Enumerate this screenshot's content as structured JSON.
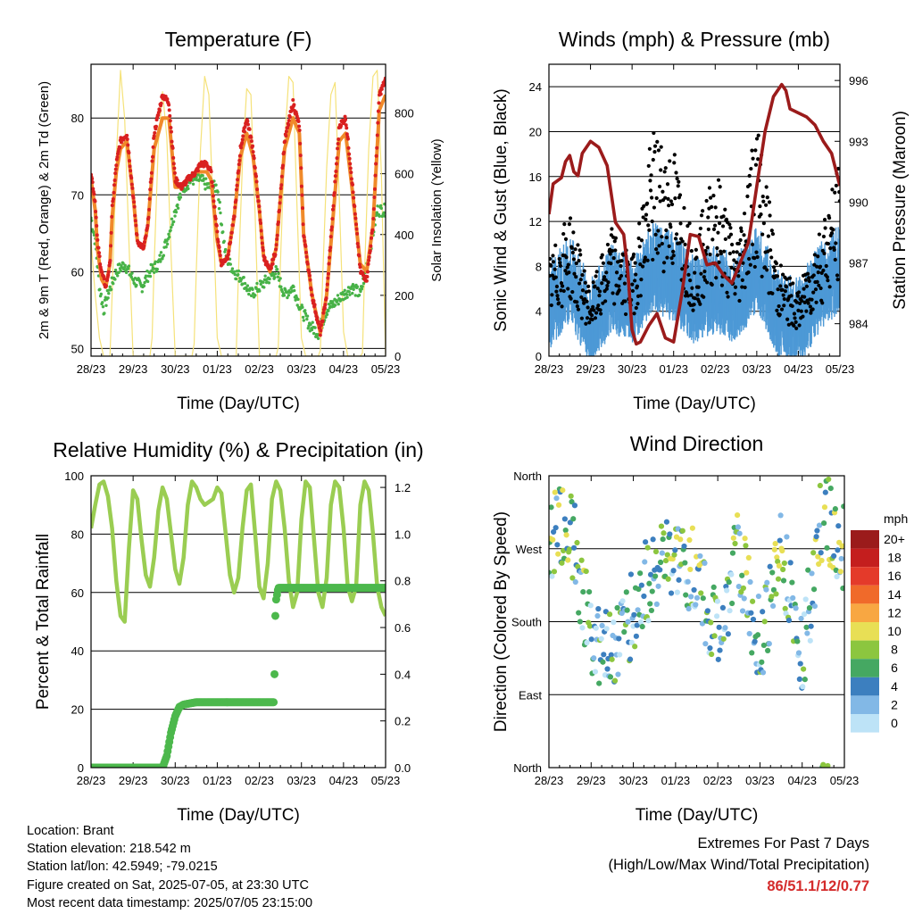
{
  "footer": {
    "location": "Location: Brant",
    "elevation": "Station elevation: 218.542 m",
    "latlon": "Station lat/lon: 42.5949; -79.0215",
    "created": "Figure created on Sat, 2025-07-05, at 23:30 UTC",
    "latest": "Most recent data timestamp: 2025/07/05 23:15:00"
  },
  "extremes": {
    "title": "Extremes For Past 7 Days",
    "subtitle": "(High/Low/Max Wind/Total Precipitation)",
    "values": "86/51.1/12/0.77"
  },
  "colors": {
    "temp_2m": "#d92020",
    "temp_9m": "#f08a2a",
    "dewpoint": "#47b247",
    "solar": "#f5e27a",
    "wind": "#4d99d6",
    "gust": "#000000",
    "pressure": "#9b1b1b",
    "rh": "#9acd52",
    "precip": "#4cb84c"
  },
  "chart_data": [
    {
      "id": "temperature",
      "type": "line",
      "title": "Temperature (F)",
      "xlabel": "Time (Day/UTC)",
      "ylabel": "2m & 9m T (Red, Orange) & 2m Td (Green)",
      "y2label": "Solar Insolation (Yellow)",
      "xticks": [
        "28/23",
        "29/23",
        "30/23",
        "01/23",
        "02/23",
        "03/23",
        "04/23",
        "05/23"
      ],
      "xlim": [
        0,
        7
      ],
      "ylim": [
        49,
        87
      ],
      "yticks": [
        50,
        60,
        70,
        80
      ],
      "y2lim": [
        0,
        960
      ],
      "y2ticks": [
        0,
        200,
        400,
        600,
        800
      ],
      "series": [
        {
          "x": [
            0,
            0.1,
            0.15,
            0.25,
            0.35,
            0.45,
            0.5,
            0.6,
            0.7,
            0.85,
            1.0,
            1.1,
            1.25,
            1.35,
            1.5,
            1.7,
            1.85,
            2.0,
            2.15,
            2.3,
            2.5,
            2.6,
            2.75,
            2.85,
            3.0,
            3.1,
            3.25,
            3.4,
            3.55,
            3.7,
            3.85,
            4.0,
            4.1,
            4.25,
            4.4,
            4.6,
            4.8,
            4.95,
            5.05,
            5.25,
            5.45,
            5.6,
            5.75,
            5.9,
            6.05,
            6.2,
            6.4,
            6.55,
            6.7,
            6.85,
            7.0
          ],
          "y": [
            73,
            69,
            64,
            60,
            58,
            61,
            68,
            74,
            77,
            78,
            70,
            64,
            63,
            66,
            78,
            83,
            82,
            72,
            71,
            72,
            73,
            74,
            74,
            73,
            65,
            61,
            62,
            67,
            76,
            80,
            76,
            68,
            62,
            60,
            63,
            77,
            82,
            79,
            65,
            57,
            52,
            57,
            68,
            79,
            80,
            72,
            60,
            59,
            66,
            83,
            85
          ]
        },
        {
          "x": [
            0,
            0.1,
            0.15,
            0.25,
            0.35,
            0.45,
            0.5,
            0.6,
            0.7,
            0.85,
            1.0,
            1.1,
            1.25,
            1.35,
            1.5,
            1.7,
            1.85,
            2.0,
            2.15,
            2.3,
            2.5,
            2.6,
            2.75,
            2.85,
            3.0,
            3.1,
            3.25,
            3.4,
            3.55,
            3.7,
            3.85,
            4.0,
            4.1,
            4.25,
            4.4,
            4.6,
            4.8,
            4.95,
            5.05,
            5.25,
            5.45,
            5.6,
            5.75,
            5.9,
            6.05,
            6.2,
            6.4,
            6.55,
            6.7,
            6.85,
            7.0
          ],
          "y": [
            72,
            68,
            63,
            59,
            58,
            61,
            67,
            73,
            76,
            77,
            70,
            64,
            63,
            66,
            76,
            80,
            80,
            71,
            71,
            72,
            73,
            73,
            73,
            72,
            64,
            61,
            62,
            67,
            75,
            78,
            75,
            68,
            62,
            60,
            63,
            76,
            80,
            78,
            65,
            57,
            52,
            57,
            67,
            77,
            78,
            71,
            61,
            60,
            66,
            81,
            83
          ]
        },
        {
          "x": [
            0,
            0.1,
            0.2,
            0.3,
            0.4,
            0.6,
            0.8,
            1.0,
            1.2,
            1.4,
            1.6,
            1.8,
            2.0,
            2.2,
            2.4,
            2.6,
            2.8,
            3.0,
            3.2,
            3.4,
            3.6,
            3.8,
            4.0,
            4.2,
            4.4,
            4.6,
            4.8,
            5.0,
            5.2,
            5.4,
            5.6,
            5.8,
            6.0,
            6.2,
            6.4,
            6.6,
            6.8,
            7.0
          ],
          "y": [
            67,
            64,
            58,
            55,
            57,
            60,
            61,
            59,
            58,
            60,
            61,
            64,
            68,
            71,
            72,
            72,
            71,
            71,
            62,
            60,
            59,
            57,
            58,
            59,
            60,
            57,
            58,
            55,
            53,
            52,
            55,
            56,
            57,
            58,
            57,
            62,
            68,
            68
          ]
        },
        {
          "x": [
            0,
            0.1,
            0.2,
            0.3,
            0.4,
            0.45,
            0.5,
            0.6,
            0.7,
            0.8,
            0.9,
            1.0,
            1.1,
            1.2,
            1.3,
            1.4,
            1.45,
            1.5,
            1.6,
            1.7,
            1.8,
            1.9,
            2.0,
            2.1,
            2.2,
            2.3,
            2.4,
            2.45,
            2.5,
            2.6,
            2.7,
            2.8,
            2.9,
            3.0,
            3.1,
            3.2,
            3.3,
            3.4,
            3.45,
            3.5,
            3.6,
            3.7,
            3.8,
            3.9,
            4.0,
            4.1,
            4.2,
            4.3,
            4.4,
            4.45,
            4.5,
            4.6,
            4.7,
            4.8,
            4.9,
            5.0,
            5.1,
            5.2,
            5.3,
            5.4,
            5.45,
            5.5,
            5.6,
            5.7,
            5.8,
            5.9,
            6.0,
            6.1,
            6.2,
            6.3,
            6.4,
            6.45,
            6.5,
            6.6,
            6.7,
            6.8,
            6.9,
            7.0
          ],
          "y": [
            380,
            200,
            60,
            0,
            0,
            0,
            200,
            650,
            940,
            780,
            380,
            0,
            0,
            0,
            0,
            0,
            60,
            300,
            700,
            870,
            720,
            340,
            0,
            0,
            0,
            0,
            0,
            40,
            280,
            680,
            920,
            860,
            480,
            60,
            0,
            0,
            0,
            0,
            0,
            260,
            640,
            880,
            860,
            460,
            0,
            0,
            0,
            0,
            0,
            30,
            300,
            700,
            920,
            900,
            470,
            60,
            0,
            0,
            0,
            0,
            20,
            240,
            620,
            860,
            900,
            520,
            80,
            0,
            0,
            0,
            0,
            10,
            270,
            680,
            920,
            940,
            600,
            0
          ]
        }
      ]
    },
    {
      "id": "winds",
      "type": "scatter",
      "title": "Winds (mph) & Pressure (mb)",
      "xlabel": "Time (Day/UTC)",
      "ylabel": "Sonic Wind & Gust (Blue, Black)",
      "y2label": "Station Pressure (Maroon)",
      "xticks": [
        "28/23",
        "29/23",
        "30/23",
        "01/23",
        "02/23",
        "03/23",
        "04/23",
        "05/23"
      ],
      "xlim": [
        0,
        7
      ],
      "ylim": [
        0,
        26
      ],
      "yticks": [
        0,
        4,
        8,
        12,
        16,
        20,
        24
      ],
      "y2lim": [
        982.4,
        996.8
      ],
      "y2ticks": [
        984,
        987,
        990,
        993,
        996
      ],
      "series": [
        {
          "name": "pressure",
          "x": [
            0,
            0.1,
            0.3,
            0.4,
            0.5,
            0.6,
            0.7,
            0.8,
            1.0,
            1.2,
            1.4,
            1.6,
            1.8,
            1.9,
            2.0,
            2.1,
            2.2,
            2.4,
            2.6,
            2.8,
            3.0,
            3.2,
            3.4,
            3.6,
            3.8,
            4.0,
            4.2,
            4.4,
            4.6,
            4.8,
            5.0,
            5.2,
            5.4,
            5.6,
            5.7,
            5.8,
            6.0,
            6.2,
            6.4,
            6.6,
            6.8,
            7.0
          ],
          "y": [
            989.4,
            990.9,
            991.2,
            992.0,
            992.3,
            991.5,
            991.3,
            992.4,
            993.0,
            992.7,
            991.8,
            989.0,
            988.4,
            986.5,
            983.7,
            983.0,
            983.1,
            983.9,
            984.5,
            983.3,
            983.1,
            985.5,
            988.4,
            988.3,
            986.9,
            987.0,
            986.4,
            986.0,
            987.0,
            988.0,
            990.8,
            993.5,
            995.2,
            995.8,
            995.5,
            994.6,
            994.4,
            994.2,
            993.8,
            993.0,
            992.4,
            990.8
          ]
        },
        {
          "name": "wind_mean",
          "x": [
            0,
            0.5,
            1,
            1.5,
            2,
            2.5,
            3,
            3.5,
            4,
            4.5,
            5,
            5.5,
            6,
            6.5,
            7
          ],
          "y": [
            3.5,
            6,
            2,
            5,
            4,
            7,
            6,
            4,
            5,
            4,
            7,
            3,
            2,
            5,
            7
          ]
        },
        {
          "name": "gust_mean",
          "x": [
            0,
            0.5,
            1,
            1.5,
            2,
            2.5,
            3,
            3.5,
            4,
            4.5,
            5,
            5.5,
            6,
            6.5,
            7
          ],
          "y": [
            6,
            9,
            4,
            8,
            6,
            14,
            13,
            7,
            12,
            7,
            15,
            6,
            4,
            8,
            12
          ]
        }
      ]
    },
    {
      "id": "humidity",
      "type": "line",
      "title": "Relative Humidity (%) & Precipitation (in)",
      "xlabel": "Time (Day/UTC)",
      "ylabel": "Percent & Total Rainfall",
      "xticks": [
        "28/23",
        "29/23",
        "30/23",
        "01/23",
        "02/23",
        "03/23",
        "04/23",
        "05/23"
      ],
      "xlim": [
        0,
        7
      ],
      "ylim": [
        0,
        100
      ],
      "yticks": [
        0,
        20,
        40,
        60,
        80,
        100
      ],
      "y2lim": [
        0,
        1.25
      ],
      "y2ticks": [
        0.0,
        0.2,
        0.4,
        0.6,
        0.8,
        1.0,
        1.2
      ],
      "series": [
        {
          "name": "rh",
          "x": [
            0,
            0.1,
            0.2,
            0.3,
            0.4,
            0.5,
            0.6,
            0.7,
            0.8,
            0.9,
            1.0,
            1.1,
            1.2,
            1.3,
            1.4,
            1.5,
            1.6,
            1.7,
            1.8,
            1.9,
            2.0,
            2.1,
            2.2,
            2.3,
            2.4,
            2.5,
            2.6,
            2.7,
            2.8,
            2.9,
            3.0,
            3.1,
            3.2,
            3.3,
            3.4,
            3.5,
            3.6,
            3.7,
            3.8,
            3.9,
            4.0,
            4.1,
            4.2,
            4.3,
            4.4,
            4.5,
            4.6,
            4.7,
            4.8,
            4.9,
            5.0,
            5.1,
            5.2,
            5.3,
            5.4,
            5.5,
            5.6,
            5.7,
            5.8,
            5.9,
            6.0,
            6.1,
            6.2,
            6.3,
            6.4,
            6.5,
            6.6,
            6.7,
            6.8,
            6.9,
            7.0
          ],
          "y": [
            82,
            90,
            97,
            98,
            93,
            82,
            64,
            52,
            50,
            75,
            95,
            92,
            78,
            66,
            62,
            72,
            88,
            96,
            92,
            80,
            68,
            63,
            72,
            90,
            98,
            96,
            92,
            90,
            91,
            92,
            96,
            94,
            80,
            66,
            60,
            65,
            82,
            95,
            97,
            80,
            62,
            58,
            70,
            92,
            98,
            95,
            82,
            64,
            55,
            60,
            85,
            98,
            96,
            78,
            60,
            55,
            65,
            90,
            98,
            96,
            82,
            62,
            57,
            62,
            90,
            98,
            95,
            80,
            62,
            55,
            52
          ]
        },
        {
          "name": "precip_total",
          "x": [
            0,
            1.5,
            1.7,
            1.8,
            1.9,
            2.0,
            2.1,
            2.2,
            2.5,
            3.0,
            3.5,
            4.0,
            4.35,
            4.36,
            4.37,
            4.38,
            4.4,
            4.45,
            4.5,
            5.0,
            5.5,
            6.0,
            6.5,
            7.0
          ],
          "y": [
            0,
            0,
            0,
            0.05,
            0.15,
            0.22,
            0.26,
            0.27,
            0.28,
            0.28,
            0.28,
            0.28,
            0.28,
            0.4,
            0.6,
            0.65,
            0.72,
            0.77,
            0.77,
            0.77,
            0.77,
            0.77,
            0.77,
            0.77
          ]
        }
      ]
    },
    {
      "id": "direction",
      "type": "scatter",
      "title": "Wind Direction",
      "xlabel": "Time (Day/UTC)",
      "ylabel": "Direction (Colored By Speed)",
      "xticks": [
        "28/23",
        "29/23",
        "30/23",
        "01/23",
        "02/23",
        "03/23",
        "04/23",
        "05/23"
      ],
      "xlim": [
        0,
        7
      ],
      "ylim": [
        0,
        360
      ],
      "yticks": [
        "North",
        "East",
        "South",
        "West",
        "North"
      ],
      "ytick_values": [
        0,
        90,
        180,
        270,
        360
      ],
      "legend": {
        "title": "mph",
        "labels": [
          "20+",
          "18",
          "16",
          "14",
          "12",
          "10",
          "8",
          "6",
          "4",
          "2",
          "0"
        ],
        "colors": [
          "#9b1b1b",
          "#c41e1e",
          "#e43a2a",
          "#f06a2a",
          "#f8a742",
          "#e8df55",
          "#8cc63f",
          "#45a862",
          "#3c7fbf",
          "#82b8e6",
          "#bde3f7"
        ]
      },
      "series": [
        {
          "name": "direction_mean",
          "x": [
            0,
            0.5,
            1,
            1.5,
            2,
            2.5,
            3,
            3.5,
            4,
            4.5,
            5,
            5.5,
            6,
            6.5,
            7
          ],
          "y": [
            280,
            300,
            160,
            150,
            190,
            250,
            250,
            240,
            160,
            265,
            150,
            270,
            140,
            320,
            270
          ]
        }
      ]
    }
  ]
}
